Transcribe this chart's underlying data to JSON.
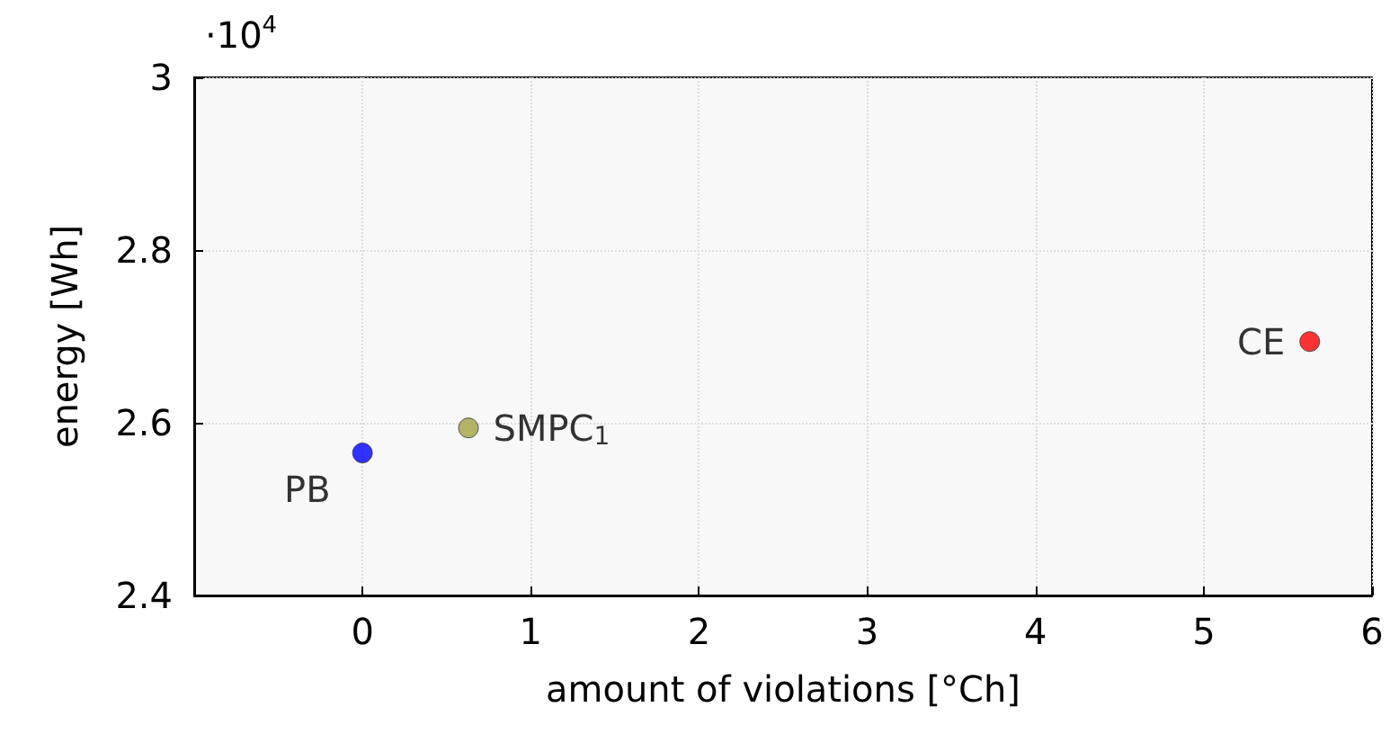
{
  "chart_data": {
    "type": "scatter",
    "xlabel": "amount of violations [°Ch]",
    "ylabel": "energy [Wh]",
    "annotations": [
      "·10$^{4}$"
    ],
    "series": [
      {
        "name": "PB",
        "color": "#0000ff",
        "x": [
          0
        ],
        "values": [
          2.565
        ]
      },
      {
        "name": "SMPC$_{1}$",
        "color": "#a3a345",
        "x": [
          0.63
        ],
        "values": [
          2.594
        ]
      },
      {
        "name": "CE",
        "color": "#ff0000",
        "x": [
          5.63
        ],
        "values": [
          2.694
        ]
      }
    ],
    "xlim": [
      -1,
      6
    ],
    "xticks": [
      0,
      1,
      2,
      3,
      4,
      5,
      6
    ],
    "ylim": [
      2.4,
      3
    ],
    "yticks": [
      2.4,
      2.6,
      2.8,
      3
    ],
    "grid": true,
    "marker": "circle",
    "legend": false
  }
}
